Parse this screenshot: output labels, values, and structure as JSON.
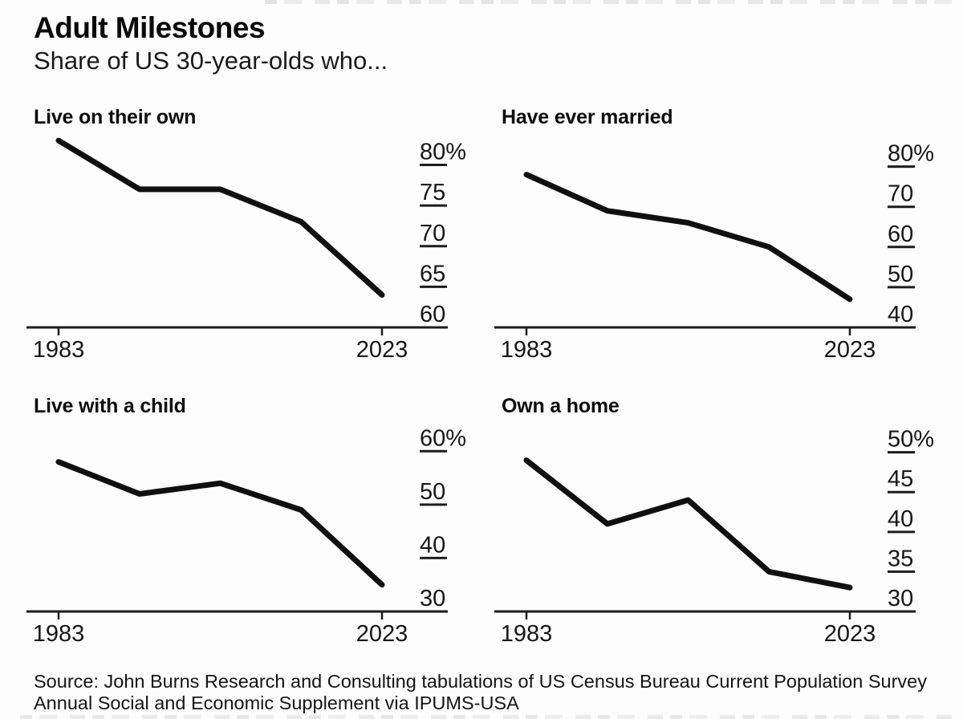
{
  "header": {
    "title": "Adult Milestones",
    "subtitle": "Share of US 30-year-olds who..."
  },
  "source": {
    "line1": "Source: John Burns Research and Consulting tabulations of US Census Bureau Current Population Survey",
    "line2": "Annual Social and Economic Supplement via IPUMS-USA"
  },
  "colors": {
    "line": "#101010",
    "axis": "#1c1c1c",
    "tick_dash": "#1c1c1c",
    "background": "#fdfdfd"
  },
  "chart_data": [
    {
      "type": "line",
      "title": "Live on their own",
      "x": [
        1983,
        1993,
        2003,
        2013,
        2023
      ],
      "values": [
        83,
        77,
        77,
        73,
        64
      ],
      "x_tick_labels": [
        "1983",
        "2023"
      ],
      "x_tick_values": [
        1983,
        2023
      ],
      "y_ticks": [
        {
          "value": 80,
          "label": "80%"
        },
        {
          "value": 75,
          "label": "75"
        },
        {
          "value": 70,
          "label": "70"
        },
        {
          "value": 65,
          "label": "65"
        },
        {
          "value": 60,
          "label": "60"
        }
      ],
      "ylim": [
        60,
        84
      ],
      "legend": "none",
      "grid": "off"
    },
    {
      "type": "line",
      "title": "Have ever married",
      "x": [
        1983,
        1993,
        2003,
        2013,
        2023
      ],
      "values": [
        78,
        69,
        66,
        60,
        47
      ],
      "x_tick_labels": [
        "1983",
        "2023"
      ],
      "x_tick_values": [
        1983,
        2023
      ],
      "y_ticks": [
        {
          "value": 80,
          "label": "80%"
        },
        {
          "value": 70,
          "label": "70"
        },
        {
          "value": 60,
          "label": "60"
        },
        {
          "value": 50,
          "label": "50"
        },
        {
          "value": 40,
          "label": "40"
        }
      ],
      "ylim": [
        40,
        88.5
      ],
      "legend": "none",
      "grid": "off"
    },
    {
      "type": "line",
      "title": "Live with a child",
      "x": [
        1983,
        1993,
        2003,
        2013,
        2023
      ],
      "values": [
        58,
        52,
        54,
        49,
        35
      ],
      "x_tick_labels": [
        "1983",
        "2023"
      ],
      "x_tick_values": [
        1983,
        2023
      ],
      "y_ticks": [
        {
          "value": 60,
          "label": "60%"
        },
        {
          "value": 50,
          "label": "50"
        },
        {
          "value": 40,
          "label": "40"
        },
        {
          "value": 30,
          "label": "30"
        }
      ],
      "ylim": [
        30,
        66.5
      ],
      "legend": "none",
      "grid": "off"
    },
    {
      "type": "line",
      "title": "Own a home",
      "x": [
        1983,
        1993,
        2003,
        2013,
        2023
      ],
      "values": [
        49,
        41,
        44,
        35,
        33
      ],
      "x_tick_labels": [
        "1983",
        "2023"
      ],
      "x_tick_values": [
        1983,
        2023
      ],
      "y_ticks": [
        {
          "value": 50,
          "label": "50%"
        },
        {
          "value": 45,
          "label": "45"
        },
        {
          "value": 40,
          "label": "40"
        },
        {
          "value": 35,
          "label": "35"
        },
        {
          "value": 30,
          "label": "30"
        }
      ],
      "ylim": [
        30,
        54.5
      ],
      "legend": "none",
      "grid": "off"
    }
  ]
}
